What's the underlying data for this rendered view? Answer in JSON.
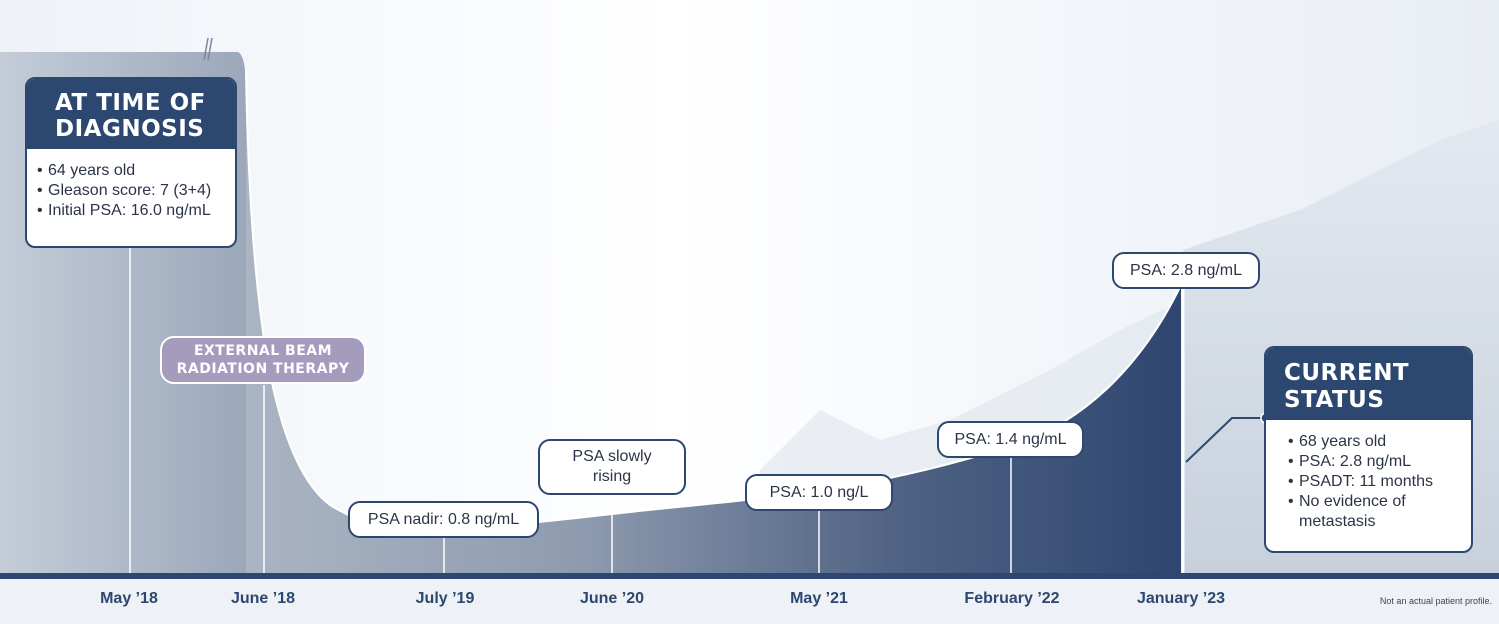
{
  "diagnosis": {
    "title_line1": "AT TIME OF",
    "title_line2": "DIAGNOSIS",
    "items": [
      "64 years old",
      "Gleason score: 7 (3+4)",
      "Initial PSA: 16.0 ng/mL"
    ]
  },
  "treatment_label_line1": "EXTERNAL BEAM",
  "treatment_label_line2": "RADIATION THERAPY",
  "callouts": {
    "nadir": "PSA nadir: 0.8 ng/mL",
    "rising_line1": "PSA slowly",
    "rising_line2": "rising",
    "psa_2021": "PSA: 1.0 ng/L",
    "psa_2022": "PSA: 1.4 ng/mL",
    "psa_2023": "PSA: 2.8 ng/mL"
  },
  "current_status": {
    "title_line1": "CURRENT",
    "title_line2": "STATUS",
    "items": [
      "68 years old",
      "PSA: 2.8 ng/mL",
      "PSADT: 11 months",
      "No evidence of metastasis"
    ]
  },
  "timeline": {
    "dates": [
      "May ’18",
      "June ’18",
      "July ’19",
      "June ’20",
      "May ’21",
      "February ’22",
      "January ’23"
    ]
  },
  "disclaimer": "Not an actual patient profile.",
  "colors": {
    "navy": "#2c4770",
    "lavender": "#a49bbd"
  }
}
